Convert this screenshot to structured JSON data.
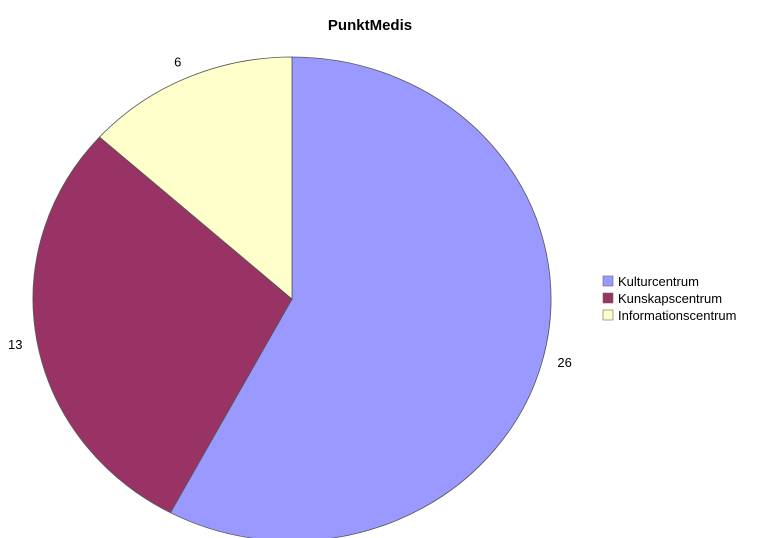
{
  "chart_data": {
    "type": "pie",
    "title": "PunktMedis",
    "categories": [
      "Kulturcentrum",
      "Kunskapscentrum",
      "Informationscentrum"
    ],
    "values": [
      26,
      13,
      6
    ],
    "colors": [
      "#9999ff",
      "#993366",
      "#ffffcc"
    ],
    "legend_position": "right"
  }
}
